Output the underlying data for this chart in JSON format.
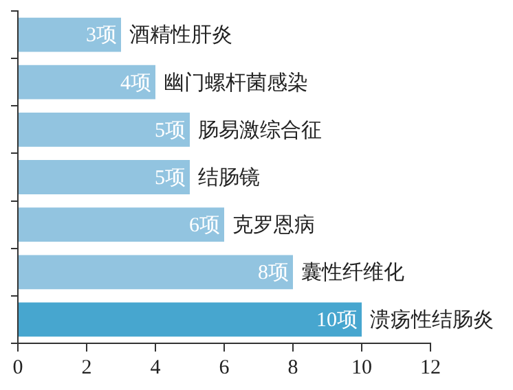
{
  "chart_data": {
    "type": "bar",
    "orientation": "horizontal",
    "categories": [
      "酒精性肝炎",
      "幽门螺杆菌感染",
      "肠易激综合征",
      "结肠镜",
      "克罗恩病",
      "囊性纤维化",
      "溃疡性结肠炎"
    ],
    "values": [
      3,
      4,
      5,
      5,
      6,
      8,
      10
    ],
    "value_labels": [
      "3项",
      "4项",
      "5项",
      "5项",
      "6项",
      "8项",
      "10项"
    ],
    "colors": [
      "#92c4e0",
      "#92c4e0",
      "#92c4e0",
      "#92c4e0",
      "#92c4e0",
      "#92c4e0",
      "#47a6cf"
    ],
    "xlim": [
      0,
      12
    ],
    "xticks": [
      0,
      2,
      4,
      6,
      8,
      10,
      12
    ],
    "grid": false,
    "legend": false
  }
}
